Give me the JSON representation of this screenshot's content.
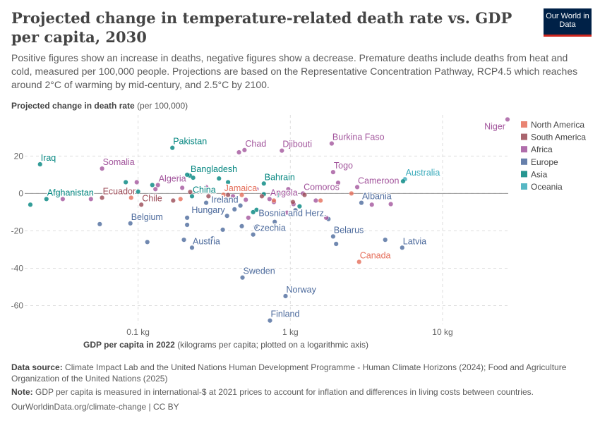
{
  "header": {
    "title": "Projected change in temperature-related death rate vs. GDP per capita, 2030",
    "subtitle": "Positive figures show an increase in deaths, negative figures show a decrease. Premature deaths include deaths from heat and cold, measured per 100,000 people. Projections are based on the Representative Concentration Pathway, RCP4.5 which reaches around 2°C of warming by mid-century, and 2.5°C by 2100.",
    "logo": "Our World in Data"
  },
  "footer": {
    "source_label": "Data source:",
    "source": "Climate Impact Lab and the United Nations Human Development Programme - Human Climate Horizons (2024); Food and Agriculture Organization of the United Nations (2025)",
    "note_label": "Note:",
    "note": "GDP per capita is measured in international-$ at 2021 prices to account for inflation and differences in living costs between countries.",
    "credit": "OurWorldinData.org/climate-change | CC BY"
  },
  "chart_data": {
    "type": "scatter",
    "ylabel_bold": "Projected change in death rate",
    "ylabel_rest": "(per 100,000)",
    "xlabel_bold": "GDP per capita in 2022",
    "xlabel_rest": "(kilograms per capita; plotted on a logarithmic axis)",
    "x_scale": "log",
    "xlim": [
      0.018,
      27
    ],
    "ylim": [
      -70,
      42
    ],
    "grid": true,
    "legend_position": "right",
    "x_ticks": [
      {
        "v": 0.1,
        "label": "0.1 kg"
      },
      {
        "v": 1,
        "label": "1 kg"
      },
      {
        "v": 10,
        "label": "10 kg"
      }
    ],
    "y_ticks": [
      {
        "v": -60,
        "label": "-60"
      },
      {
        "v": -40,
        "label": "-40"
      },
      {
        "v": -20,
        "label": "-20"
      },
      {
        "v": 0,
        "label": "0"
      },
      {
        "v": 20,
        "label": "20"
      }
    ],
    "legend": [
      {
        "name": "North America",
        "color": "#E56E5A"
      },
      {
        "name": "South America",
        "color": "#9A4A55"
      },
      {
        "name": "Africa",
        "color": "#A2559C"
      },
      {
        "name": "Europe",
        "color": "#4C6A9C"
      },
      {
        "name": "Asia",
        "color": "#00847E"
      },
      {
        "name": "Oceania",
        "color": "#38AABA"
      }
    ],
    "points": [
      {
        "label": "Iraq",
        "region": "Asia",
        "x": 0.0227,
        "y": 15.6
      },
      {
        "label": "Afghanistan",
        "region": "Asia",
        "x": 0.025,
        "y": -3
      },
      {
        "label": "Somalia",
        "region": "Africa",
        "x": 0.058,
        "y": 13.3
      },
      {
        "label": "Ecuador",
        "region": "South America",
        "x": 0.058,
        "y": -2.3
      },
      {
        "label": "Chile",
        "region": "South America",
        "x": 0.105,
        "y": -6
      },
      {
        "label": "Belgium",
        "region": "Europe",
        "x": 0.089,
        "y": -16
      },
      {
        "label": "Pakistan",
        "region": "Asia",
        "x": 0.168,
        "y": 24.4
      },
      {
        "label": "Algeria",
        "region": "Africa",
        "x": 0.135,
        "y": 4.5
      },
      {
        "label": "Bangladesh",
        "region": "Asia",
        "x": 0.219,
        "y": 9.5
      },
      {
        "label": "China",
        "region": "Asia",
        "x": 0.226,
        "y": -1.5
      },
      {
        "label": "Hungary",
        "region": "Europe",
        "x": 0.384,
        "y": -12
      },
      {
        "label": "Austria",
        "region": "Europe",
        "x": 0.226,
        "y": -29
      },
      {
        "label": "Jamaica",
        "region": "North America",
        "x": 0.364,
        "y": -0.7
      },
      {
        "label": "Ireland",
        "region": "Europe",
        "x": 0.47,
        "y": -6.5
      },
      {
        "label": "Chad",
        "region": "Africa",
        "x": 0.5,
        "y": 23.2
      },
      {
        "label": "Djibouti",
        "region": "Africa",
        "x": 0.88,
        "y": 22.9
      },
      {
        "label": "Burkina Faso",
        "region": "Africa",
        "x": 1.87,
        "y": 26.7
      },
      {
        "label": "Bahrain",
        "region": "Asia",
        "x": 0.67,
        "y": 5.3
      },
      {
        "label": "Angola",
        "region": "Africa",
        "x": 0.73,
        "y": -3
      },
      {
        "label": "Comoros",
        "region": "Africa",
        "x": 1.21,
        "y": 0
      },
      {
        "label": "Togo",
        "region": "Africa",
        "x": 1.91,
        "y": 11.4
      },
      {
        "label": "Cameroon",
        "region": "Africa",
        "x": 2.75,
        "y": 3.4
      },
      {
        "label": "Australia",
        "region": "Oceania",
        "x": 5.66,
        "y": 7.6
      },
      {
        "label": "Albania",
        "region": "Europe",
        "x": 2.93,
        "y": -5
      },
      {
        "label": "Bosnia and Herz.",
        "region": "Europe",
        "x": 1.78,
        "y": -13.7
      },
      {
        "label": "Czechia",
        "region": "Europe",
        "x": 0.57,
        "y": -22
      },
      {
        "label": "Belarus",
        "region": "Europe",
        "x": 1.91,
        "y": -23
      },
      {
        "label": "Latvia",
        "region": "Europe",
        "x": 5.43,
        "y": -29
      },
      {
        "label": "Canada",
        "region": "North America",
        "x": 2.83,
        "y": -36.6
      },
      {
        "label": "Sweden",
        "region": "Europe",
        "x": 0.485,
        "y": -45
      },
      {
        "label": "Norway",
        "region": "Europe",
        "x": 0.93,
        "y": -54.9
      },
      {
        "label": "Finland",
        "region": "Europe",
        "x": 0.735,
        "y": -68
      },
      {
        "label": "Niger",
        "region": "Africa",
        "x": 26.7,
        "y": 39.6
      },
      {
        "region": "Asia",
        "x": 0.0196,
        "y": -6
      },
      {
        "region": "Asia",
        "x": 0.083,
        "y": 6
      },
      {
        "region": "Asia",
        "x": 0.1,
        "y": 1
      },
      {
        "region": "Asia",
        "x": 0.124,
        "y": 4.5
      },
      {
        "region": "Asia",
        "x": 0.21,
        "y": 10
      },
      {
        "region": "Asia",
        "x": 0.23,
        "y": 8.4
      },
      {
        "region": "Asia",
        "x": 0.34,
        "y": 8
      },
      {
        "region": "Asia",
        "x": 0.39,
        "y": 6
      },
      {
        "region": "Asia",
        "x": 0.67,
        "y": -0.4
      },
      {
        "region": "Asia",
        "x": 0.83,
        "y": -0.8
      },
      {
        "region": "Asia",
        "x": 1.15,
        "y": -6.9
      },
      {
        "region": "Asia",
        "x": 0.6,
        "y": -8.8
      },
      {
        "region": "Asia",
        "x": 0.57,
        "y": -10
      },
      {
        "region": "Asia",
        "x": 5.5,
        "y": 6.5
      },
      {
        "region": "Africa",
        "x": 0.032,
        "y": -3
      },
      {
        "region": "Africa",
        "x": 0.049,
        "y": -3
      },
      {
        "region": "Africa",
        "x": 0.098,
        "y": 6
      },
      {
        "region": "Africa",
        "x": 0.13,
        "y": 2.3
      },
      {
        "region": "Africa",
        "x": 0.18,
        "y": 8.4
      },
      {
        "region": "Africa",
        "x": 0.195,
        "y": 3
      },
      {
        "region": "Africa",
        "x": 0.28,
        "y": 3.4
      },
      {
        "region": "Africa",
        "x": 0.42,
        "y": -1.5
      },
      {
        "region": "Africa",
        "x": 0.6,
        "y": 2.3
      },
      {
        "region": "Africa",
        "x": 0.51,
        "y": -3.4
      },
      {
        "region": "Africa",
        "x": 0.78,
        "y": -4.6
      },
      {
        "region": "Africa",
        "x": 0.97,
        "y": 2.3
      },
      {
        "region": "Africa",
        "x": 1.05,
        "y": -5.7
      },
      {
        "region": "Africa",
        "x": 1.47,
        "y": -3.8
      },
      {
        "region": "Africa",
        "x": 2.06,
        "y": 5.7
      },
      {
        "region": "Africa",
        "x": 4.57,
        "y": -5.7
      },
      {
        "region": "Africa",
        "x": 3.43,
        "y": -6
      },
      {
        "region": "Africa",
        "x": 1.72,
        "y": -13
      },
      {
        "region": "Africa",
        "x": 0.95,
        "y": -10.3
      },
      {
        "region": "Africa",
        "x": 0.53,
        "y": -13
      },
      {
        "region": "Africa",
        "x": 0.46,
        "y": 22
      },
      {
        "region": "Europe",
        "x": 0.056,
        "y": -16.4
      },
      {
        "region": "Europe",
        "x": 0.115,
        "y": -26
      },
      {
        "region": "Europe",
        "x": 0.21,
        "y": -13
      },
      {
        "region": "Europe",
        "x": 0.21,
        "y": -16.8
      },
      {
        "region": "Europe",
        "x": 0.2,
        "y": -24.8
      },
      {
        "region": "Europe",
        "x": 0.31,
        "y": -24
      },
      {
        "region": "Europe",
        "x": 0.36,
        "y": -19.4
      },
      {
        "region": "Europe",
        "x": 0.43,
        "y": -8.5
      },
      {
        "region": "Europe",
        "x": 0.48,
        "y": -17.5
      },
      {
        "region": "Europe",
        "x": 0.59,
        "y": -17.9
      },
      {
        "region": "Europe",
        "x": 0.79,
        "y": -15.2
      },
      {
        "region": "Europe",
        "x": 1.08,
        "y": -9
      },
      {
        "region": "Europe",
        "x": 4.2,
        "y": -24.8
      },
      {
        "region": "Europe",
        "x": 2.0,
        "y": -27
      },
      {
        "region": "Europe",
        "x": 0.28,
        "y": -5
      },
      {
        "region": "Europe",
        "x": 0.14,
        "y": -3.4
      },
      {
        "region": "South America",
        "x": 0.13,
        "y": -3
      },
      {
        "region": "South America",
        "x": 0.17,
        "y": -3.8
      },
      {
        "region": "South America",
        "x": 0.22,
        "y": 0.8
      },
      {
        "region": "South America",
        "x": 0.29,
        "y": -1.5
      },
      {
        "region": "South America",
        "x": 0.39,
        "y": -0.8
      },
      {
        "region": "South America",
        "x": 0.65,
        "y": -1.5
      },
      {
        "region": "South America",
        "x": 1.04,
        "y": -4.6
      },
      {
        "region": "South America",
        "x": 1.24,
        "y": -0.8
      },
      {
        "region": "North America",
        "x": 0.09,
        "y": -2.3
      },
      {
        "region": "North America",
        "x": 0.19,
        "y": -3
      },
      {
        "region": "North America",
        "x": 0.48,
        "y": -0.8
      },
      {
        "region": "North America",
        "x": 0.78,
        "y": -3.8
      },
      {
        "region": "North America",
        "x": 1.58,
        "y": -3.8
      },
      {
        "region": "North America",
        "x": 2.52,
        "y": 0
      }
    ]
  }
}
